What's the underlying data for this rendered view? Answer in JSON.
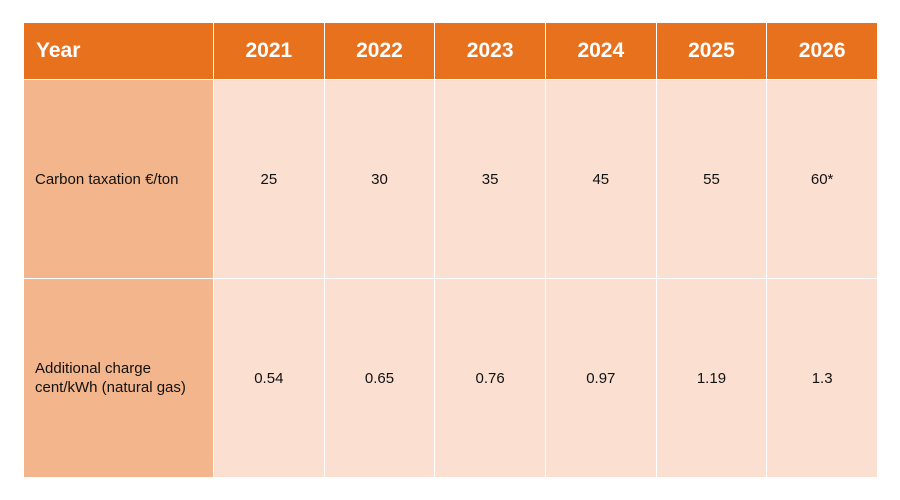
{
  "table": {
    "header_label": "Year",
    "years": [
      "2021",
      "2022",
      "2023",
      "2024",
      "2025",
      "2026"
    ],
    "rows": [
      {
        "label": "Carbon taxation €/ton",
        "values": [
          "25",
          "30",
          "35",
          "45",
          "55",
          "60*"
        ]
      },
      {
        "label": "Additional charge cent/kWh (natural gas)",
        "values": [
          "0.54",
          "0.65",
          "0.76",
          "0.97",
          "1.19",
          "1.3"
        ]
      }
    ]
  },
  "colors": {
    "header_bg": "#e8711e",
    "row_label_bg": "#f3b58b",
    "cell_bg": "#fbe0d1"
  }
}
